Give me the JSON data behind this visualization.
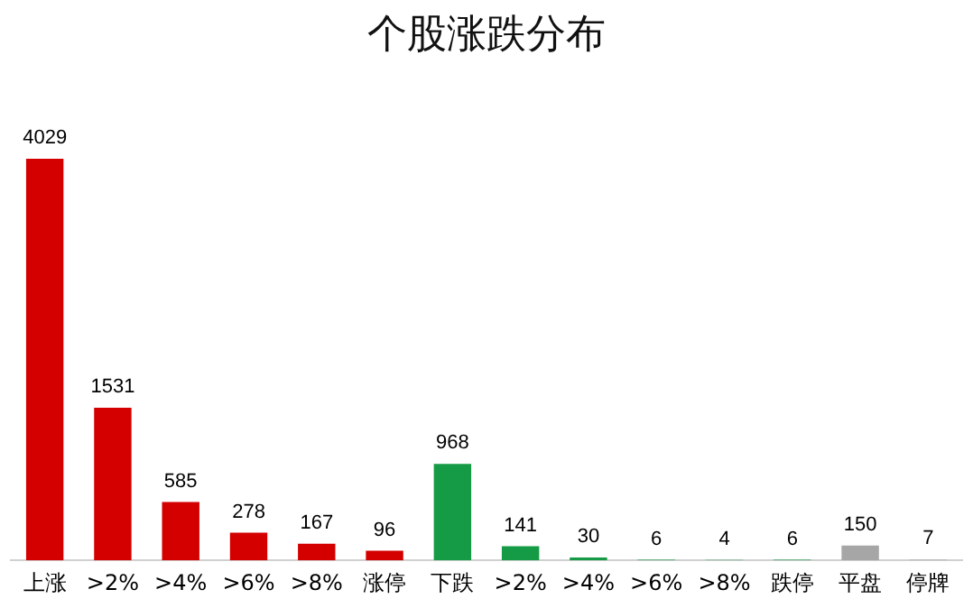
{
  "chart_data": {
    "type": "bar",
    "title": "个股涨跌分布",
    "categories": [
      "上涨",
      ">2%",
      ">4%",
      ">6%",
      ">8%",
      "涨停",
      "下跌",
      ">2%",
      ">4%",
      ">6%",
      ">8%",
      "跌停",
      "平盘",
      "停牌"
    ],
    "values": [
      4029,
      1531,
      585,
      278,
      167,
      96,
      968,
      141,
      30,
      6,
      4,
      6,
      150,
      7
    ],
    "colors": [
      "#d40000",
      "#d40000",
      "#d40000",
      "#d40000",
      "#d40000",
      "#d40000",
      "#159a45",
      "#159a45",
      "#159a45",
      "#159a45",
      "#159a45",
      "#159a45",
      "#a6a6a6",
      "#a6a6a6"
    ],
    "data_labels": true,
    "tick_labels": "x",
    "grid": false,
    "legend": false
  }
}
